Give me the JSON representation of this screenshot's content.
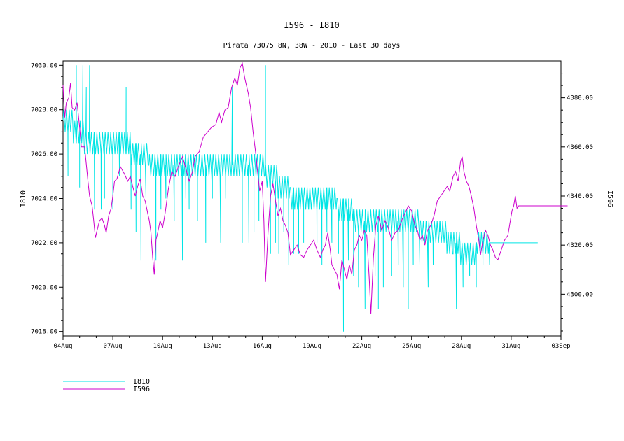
{
  "chart_data": {
    "type": "line",
    "title": "I596 - I810",
    "subtitle": "Pirata 73075 8N, 38W - 2010 - Last 30 days",
    "xlabel": "",
    "ylabel_left": "I810",
    "ylabel_right": "I596",
    "x_ticks": [
      "04Aug",
      "07Aug",
      "10Aug",
      "13Aug",
      "16Aug",
      "19Aug",
      "22Aug",
      "25Aug",
      "28Aug",
      "31Aug",
      "03Sep"
    ],
    "y_left_ticks": [
      "7018.00",
      "7020.00",
      "7022.00",
      "7024.00",
      "7026.00",
      "7028.00",
      "7030.00"
    ],
    "y_right_ticks": [
      "4300.00",
      "4320.00",
      "4340.00",
      "4360.00",
      "4380.00"
    ],
    "xlim_days": [
      0,
      30
    ],
    "ylim_left": [
      7017.8,
      7030.2
    ],
    "ylim_right": [
      4283,
      4395
    ],
    "grid": false,
    "legend_position": "bottom-left",
    "series": [
      {
        "name": "I810",
        "axis": "left",
        "color": "#00e5e5",
        "baseline": [
          [
            0,
            7027.5
          ],
          [
            0.4,
            7027.5
          ],
          [
            0.8,
            7027
          ],
          [
            1.2,
            7026.8
          ],
          [
            1.6,
            7026.5
          ],
          [
            2.5,
            7026.5
          ],
          [
            3.3,
            7026.5
          ],
          [
            3.8,
            7026.5
          ],
          [
            4.3,
            7026
          ],
          [
            4.8,
            7026
          ],
          [
            5.5,
            7025.5
          ],
          [
            6.5,
            7025.5
          ],
          [
            7.5,
            7025.5
          ],
          [
            8.5,
            7025.5
          ],
          [
            9.5,
            7025.5
          ],
          [
            10,
            7025.5
          ],
          [
            10.5,
            7025.5
          ],
          [
            11,
            7025.5
          ],
          [
            11.8,
            7025.5
          ],
          [
            12.5,
            7025
          ],
          [
            13.2,
            7024.6
          ],
          [
            14,
            7024
          ],
          [
            15,
            7024
          ],
          [
            16,
            7024
          ],
          [
            17,
            7023.5
          ],
          [
            18,
            7023
          ],
          [
            19,
            7023
          ],
          [
            20,
            7023
          ],
          [
            21,
            7023
          ],
          [
            22,
            7022.5
          ],
          [
            22.5,
            7022.5
          ],
          [
            23,
            7022.3
          ],
          [
            23.7,
            7022
          ],
          [
            24.2,
            7021.5
          ],
          [
            24.5,
            7021.3
          ],
          [
            24.8,
            7021.5
          ],
          [
            25,
            7022
          ],
          [
            25.3,
            7022
          ],
          [
            25.6,
            7021.8
          ],
          [
            26,
            7022
          ],
          [
            26.3,
            7022
          ],
          [
            26.6,
            7022
          ],
          [
            28.6,
            7022
          ]
        ],
        "spikes": [
          [
            0.3,
            7025
          ],
          [
            0.8,
            7030
          ],
          [
            1.0,
            7024.5
          ],
          [
            1.2,
            7030
          ],
          [
            1.4,
            7029
          ],
          [
            1.6,
            7030
          ],
          [
            1.9,
            7023.5
          ],
          [
            2.3,
            7023.5
          ],
          [
            2.5,
            7024
          ],
          [
            3.0,
            7023.5
          ],
          [
            3.4,
            7025
          ],
          [
            3.8,
            7029
          ],
          [
            4.1,
            7023.5
          ],
          [
            4.4,
            7022.5
          ],
          [
            4.7,
            7021.2
          ],
          [
            5.0,
            7024
          ],
          [
            5.6,
            7021.2
          ],
          [
            5.9,
            7023.5
          ],
          [
            6.2,
            7024
          ],
          [
            6.7,
            7023
          ],
          [
            7.2,
            7021.2
          ],
          [
            7.4,
            7024
          ],
          [
            7.6,
            7023.5
          ],
          [
            8.1,
            7023
          ],
          [
            8.6,
            7022
          ],
          [
            9.0,
            7024
          ],
          [
            9.5,
            7022
          ],
          [
            9.8,
            7024
          ],
          [
            10.2,
            7029
          ],
          [
            10.5,
            7025
          ],
          [
            10.8,
            7022
          ],
          [
            11.2,
            7022
          ],
          [
            11.5,
            7022.5
          ],
          [
            11.8,
            7023
          ],
          [
            12.2,
            7030
          ],
          [
            12.5,
            7021.5
          ],
          [
            12.8,
            7022
          ],
          [
            13.0,
            7021.5
          ],
          [
            13.3,
            7022.5
          ],
          [
            13.6,
            7021
          ],
          [
            13.9,
            7021.5
          ],
          [
            14.2,
            7021.5
          ],
          [
            14.5,
            7022
          ],
          [
            14.8,
            7024
          ],
          [
            15.0,
            7022.5
          ],
          [
            15.3,
            7022
          ],
          [
            15.6,
            7021
          ],
          [
            15.9,
            7022.5
          ],
          [
            16.2,
            7022
          ],
          [
            16.6,
            7021.5
          ],
          [
            16.9,
            7018
          ],
          [
            17.2,
            7021.2
          ],
          [
            17.5,
            7020.5
          ],
          [
            17.8,
            7020
          ],
          [
            18.2,
            7019
          ],
          [
            18.5,
            7021
          ],
          [
            18.8,
            7020.5
          ],
          [
            19.0,
            7019
          ],
          [
            19.3,
            7020
          ],
          [
            19.8,
            7020.5
          ],
          [
            20.2,
            7021
          ],
          [
            20.5,
            7020
          ],
          [
            20.8,
            7019
          ],
          [
            21.1,
            7021
          ],
          [
            21.5,
            7021
          ],
          [
            22.0,
            7020
          ],
          [
            22.3,
            7021
          ],
          [
            22.7,
            7023
          ],
          [
            23.1,
            7022
          ],
          [
            23.5,
            7021.5
          ],
          [
            23.7,
            7019
          ],
          [
            24.1,
            7020
          ],
          [
            24.5,
            7020.5
          ],
          [
            24.9,
            7020
          ],
          [
            25.3,
            7021
          ],
          [
            25.7,
            7021
          ]
        ]
      },
      {
        "name": "I596",
        "axis": "right",
        "color": "#cc00cc",
        "values": [
          [
            0,
            4385
          ],
          [
            0.1,
            4372
          ],
          [
            0.2,
            4378
          ],
          [
            0.35,
            4380
          ],
          [
            0.45,
            4386
          ],
          [
            0.55,
            4376
          ],
          [
            0.7,
            4375
          ],
          [
            0.85,
            4378
          ],
          [
            1.0,
            4368
          ],
          [
            1.1,
            4360
          ],
          [
            1.3,
            4360
          ],
          [
            1.5,
            4346
          ],
          [
            1.6,
            4340
          ],
          [
            1.75,
            4336
          ],
          [
            1.85,
            4330
          ],
          [
            1.95,
            4323
          ],
          [
            2.05,
            4326
          ],
          [
            2.2,
            4330
          ],
          [
            2.35,
            4331
          ],
          [
            2.5,
            4328
          ],
          [
            2.6,
            4325
          ],
          [
            2.75,
            4332
          ],
          [
            2.9,
            4335
          ],
          [
            3.0,
            4340
          ],
          [
            3.1,
            4346
          ],
          [
            3.25,
            4347
          ],
          [
            3.45,
            4352
          ],
          [
            3.7,
            4349
          ],
          [
            3.9,
            4346
          ],
          [
            4.05,
            4348
          ],
          [
            4.2,
            4344
          ],
          [
            4.35,
            4340
          ],
          [
            4.5,
            4344
          ],
          [
            4.65,
            4347
          ],
          [
            4.8,
            4340
          ],
          [
            4.95,
            4338
          ],
          [
            5.1,
            4333
          ],
          [
            5.2,
            4330
          ],
          [
            5.3,
            4325
          ],
          [
            5.4,
            4315
          ],
          [
            5.5,
            4308
          ],
          [
            5.6,
            4322
          ],
          [
            5.7,
            4325
          ],
          [
            5.85,
            4330
          ],
          [
            6.0,
            4327
          ],
          [
            6.15,
            4333
          ],
          [
            6.35,
            4343
          ],
          [
            6.55,
            4350
          ],
          [
            6.75,
            4348
          ],
          [
            6.95,
            4352
          ],
          [
            7.2,
            4356
          ],
          [
            7.45,
            4350
          ],
          [
            7.6,
            4346
          ],
          [
            7.8,
            4350
          ],
          [
            7.95,
            4356
          ],
          [
            8.2,
            4358
          ],
          [
            8.45,
            4364
          ],
          [
            8.7,
            4366
          ],
          [
            8.95,
            4368
          ],
          [
            9.2,
            4369
          ],
          [
            9.4,
            4374
          ],
          [
            9.55,
            4370
          ],
          [
            9.75,
            4375
          ],
          [
            9.95,
            4376
          ],
          [
            10.15,
            4384
          ],
          [
            10.35,
            4388
          ],
          [
            10.5,
            4385
          ],
          [
            10.65,
            4392
          ],
          [
            10.8,
            4394
          ],
          [
            10.95,
            4388
          ],
          [
            11.15,
            4382
          ],
          [
            11.3,
            4376
          ],
          [
            11.45,
            4366
          ],
          [
            11.6,
            4358
          ],
          [
            11.75,
            4348
          ],
          [
            11.85,
            4342
          ],
          [
            12.0,
            4346
          ],
          [
            12.1,
            4330
          ],
          [
            12.2,
            4305
          ],
          [
            12.35,
            4325
          ],
          [
            12.5,
            4340
          ],
          [
            12.65,
            4345
          ],
          [
            12.8,
            4338
          ],
          [
            12.95,
            4332
          ],
          [
            13.1,
            4335
          ],
          [
            13.25,
            4330
          ],
          [
            13.4,
            4328
          ],
          [
            13.55,
            4325
          ],
          [
            13.7,
            4316
          ],
          [
            13.9,
            4318
          ],
          [
            14.1,
            4320
          ],
          [
            14.3,
            4316
          ],
          [
            14.5,
            4315
          ],
          [
            14.7,
            4318
          ],
          [
            14.9,
            4320
          ],
          [
            15.1,
            4322
          ],
          [
            15.3,
            4318
          ],
          [
            15.5,
            4315
          ],
          [
            15.65,
            4318
          ],
          [
            15.8,
            4320
          ],
          [
            15.95,
            4325
          ],
          [
            16.1,
            4318
          ],
          [
            16.2,
            4312
          ],
          [
            16.35,
            4310
          ],
          [
            16.5,
            4308
          ],
          [
            16.65,
            4302
          ],
          [
            16.8,
            4314
          ],
          [
            16.95,
            4310
          ],
          [
            17.1,
            4306
          ],
          [
            17.25,
            4312
          ],
          [
            17.4,
            4308
          ],
          [
            17.55,
            4318
          ],
          [
            17.7,
            4320
          ],
          [
            17.85,
            4324
          ],
          [
            18.0,
            4322
          ],
          [
            18.15,
            4326
          ],
          [
            18.3,
            4324
          ],
          [
            18.45,
            4306
          ],
          [
            18.55,
            4292
          ],
          [
            18.7,
            4315
          ],
          [
            18.85,
            4328
          ],
          [
            19.0,
            4332
          ],
          [
            19.2,
            4326
          ],
          [
            19.4,
            4330
          ],
          [
            19.6,
            4327
          ],
          [
            19.8,
            4322
          ],
          [
            20.0,
            4325
          ],
          [
            20.2,
            4326
          ],
          [
            20.4,
            4330
          ],
          [
            20.6,
            4333
          ],
          [
            20.8,
            4336
          ],
          [
            21.0,
            4334
          ],
          [
            21.2,
            4328
          ],
          [
            21.35,
            4326
          ],
          [
            21.5,
            4322
          ],
          [
            21.65,
            4324
          ],
          [
            21.8,
            4320
          ],
          [
            21.95,
            4326
          ],
          [
            22.15,
            4328
          ],
          [
            22.35,
            4332
          ],
          [
            22.55,
            4338
          ],
          [
            22.75,
            4340
          ],
          [
            22.95,
            4342
          ],
          [
            23.15,
            4344
          ],
          [
            23.3,
            4342
          ],
          [
            23.5,
            4348
          ],
          [
            23.65,
            4350
          ],
          [
            23.8,
            4346
          ],
          [
            23.95,
            4354
          ],
          [
            24.05,
            4356
          ],
          [
            24.15,
            4350
          ],
          [
            24.3,
            4346
          ],
          [
            24.45,
            4344
          ],
          [
            24.6,
            4340
          ],
          [
            24.75,
            4335
          ],
          [
            24.9,
            4328
          ],
          [
            25.05,
            4322
          ],
          [
            25.15,
            4316
          ],
          [
            25.3,
            4322
          ],
          [
            25.45,
            4326
          ],
          [
            25.6,
            4324
          ],
          [
            25.75,
            4320
          ],
          [
            25.9,
            4318
          ],
          [
            26.05,
            4315
          ],
          [
            26.2,
            4314
          ],
          [
            26.4,
            4318
          ],
          [
            26.6,
            4322
          ],
          [
            26.8,
            4324
          ],
          [
            26.95,
            4330
          ],
          [
            27.05,
            4334
          ],
          [
            27.15,
            4336
          ],
          [
            27.25,
            4340
          ],
          [
            27.35,
            4335
          ],
          [
            27.45,
            4336
          ],
          [
            30.4,
            4336
          ]
        ]
      }
    ]
  }
}
